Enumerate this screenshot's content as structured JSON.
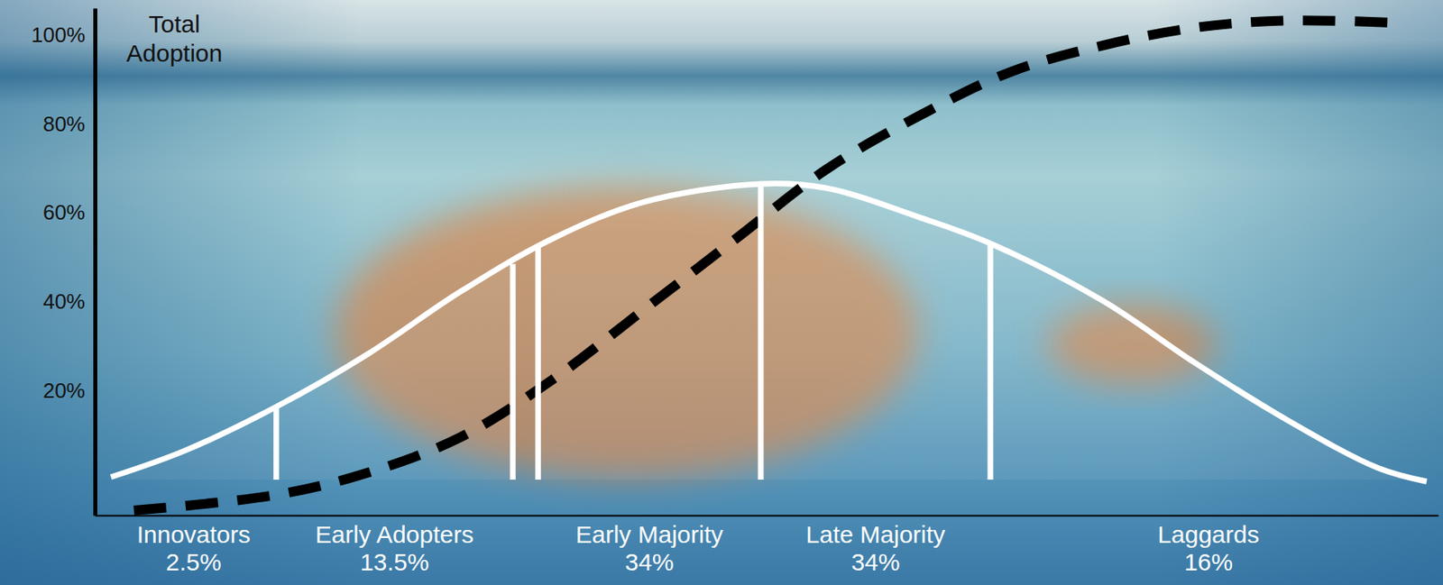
{
  "chart_data": {
    "type": "line",
    "y_label": "Total Adoption",
    "xlim": [
      -2.9,
      2.95
    ],
    "ylim": [
      -8,
      106
    ],
    "yticks": [
      {
        "value": 20,
        "label": "20%"
      },
      {
        "value": 40,
        "label": "40%"
      },
      {
        "value": 60,
        "label": "60%"
      },
      {
        "value": 80,
        "label": "80%"
      },
      {
        "value": 100,
        "label": "100%"
      }
    ],
    "tick_labels": "y",
    "grid": false,
    "data_labels": true,
    "categories": [
      "Innovators",
      "Early Adopters",
      "Early Majority",
      "Late Majority",
      "Laggards"
    ],
    "values": [
      2.5,
      13.5,
      34,
      34,
      16
    ],
    "value_labels": [
      "2.5%",
      "13.5%",
      "34%",
      "34%",
      "16%"
    ],
    "series": [
      {
        "type": "line",
        "color": "#ffffff",
        "line_style": "solid",
        "x": [
          -2.83,
          -2.51,
          -2.11,
          -1.71,
          -1.31,
          -0.91,
          -0.51,
          0,
          0.29,
          0.69,
          1.0,
          1.49,
          1.89,
          2.29,
          2.69,
          2.9
        ],
        "values": [
          0.6,
          6.5,
          16.4,
          28.3,
          42.2,
          54.1,
          62.4,
          66.5,
          65.5,
          59.0,
          53.1,
          40.2,
          26.3,
          13.5,
          2.6,
          -0.4
        ]
      },
      {
        "type": "line",
        "color": "#000000",
        "line_style": "dashed",
        "x": [
          -2.73,
          -2.11,
          -1.71,
          -1.31,
          -0.91,
          -0.51,
          -0.11,
          0.29,
          0.69,
          1.09,
          1.49,
          1.89,
          2.29,
          2.81
        ],
        "values": [
          -6.9,
          -3.4,
          1.6,
          9.5,
          22.4,
          38.2,
          54.1,
          69.9,
          81.8,
          91.7,
          97.6,
          101.6,
          103.2,
          102.6
        ]
      },
      {
        "type": "rule",
        "color": "#ffffff",
        "line_style": "solid",
        "x": [
          -2.11,
          -1.08,
          -0.97,
          0,
          1.0
        ],
        "values": [
          16.4,
          48.5,
          52.5,
          66.5,
          53.1
        ]
      }
    ]
  }
}
